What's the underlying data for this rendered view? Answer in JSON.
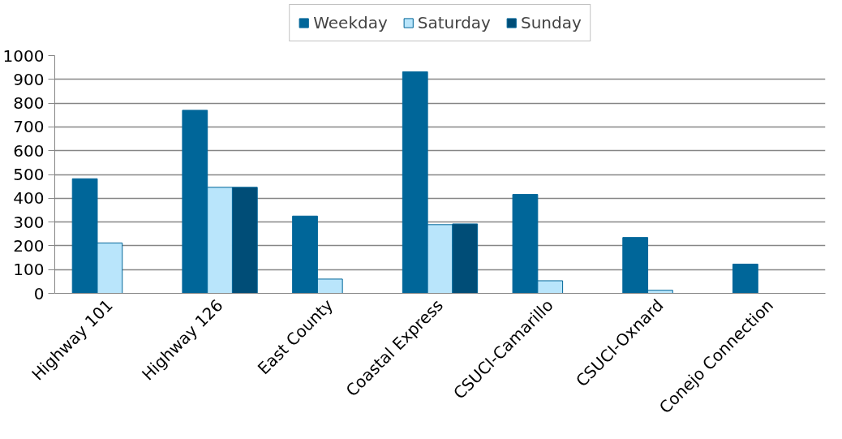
{
  "chart_data": {
    "type": "bar",
    "categories": [
      "Highway 101",
      "Highway 126",
      "East County",
      "Coastal Express",
      "CSUCI-Camarillo",
      "CSUCI-Oxnard",
      "Conejo Connection"
    ],
    "series": [
      {
        "name": "Weekday",
        "color": "#006699",
        "values": [
          482,
          770,
          325,
          932,
          416,
          235,
          123
        ]
      },
      {
        "name": "Saturday",
        "color": "#b9e5fb",
        "values": [
          212,
          446,
          60,
          289,
          53,
          13,
          null
        ]
      },
      {
        "name": "Sunday",
        "color": "#004d77",
        "values": [
          null,
          446,
          null,
          292,
          null,
          null,
          null
        ]
      }
    ],
    "ylim": [
      0,
      1000
    ],
    "yticks": [
      0,
      100,
      200,
      300,
      400,
      500,
      600,
      700,
      800,
      900,
      1000
    ],
    "grid": "y",
    "legend": "top"
  }
}
